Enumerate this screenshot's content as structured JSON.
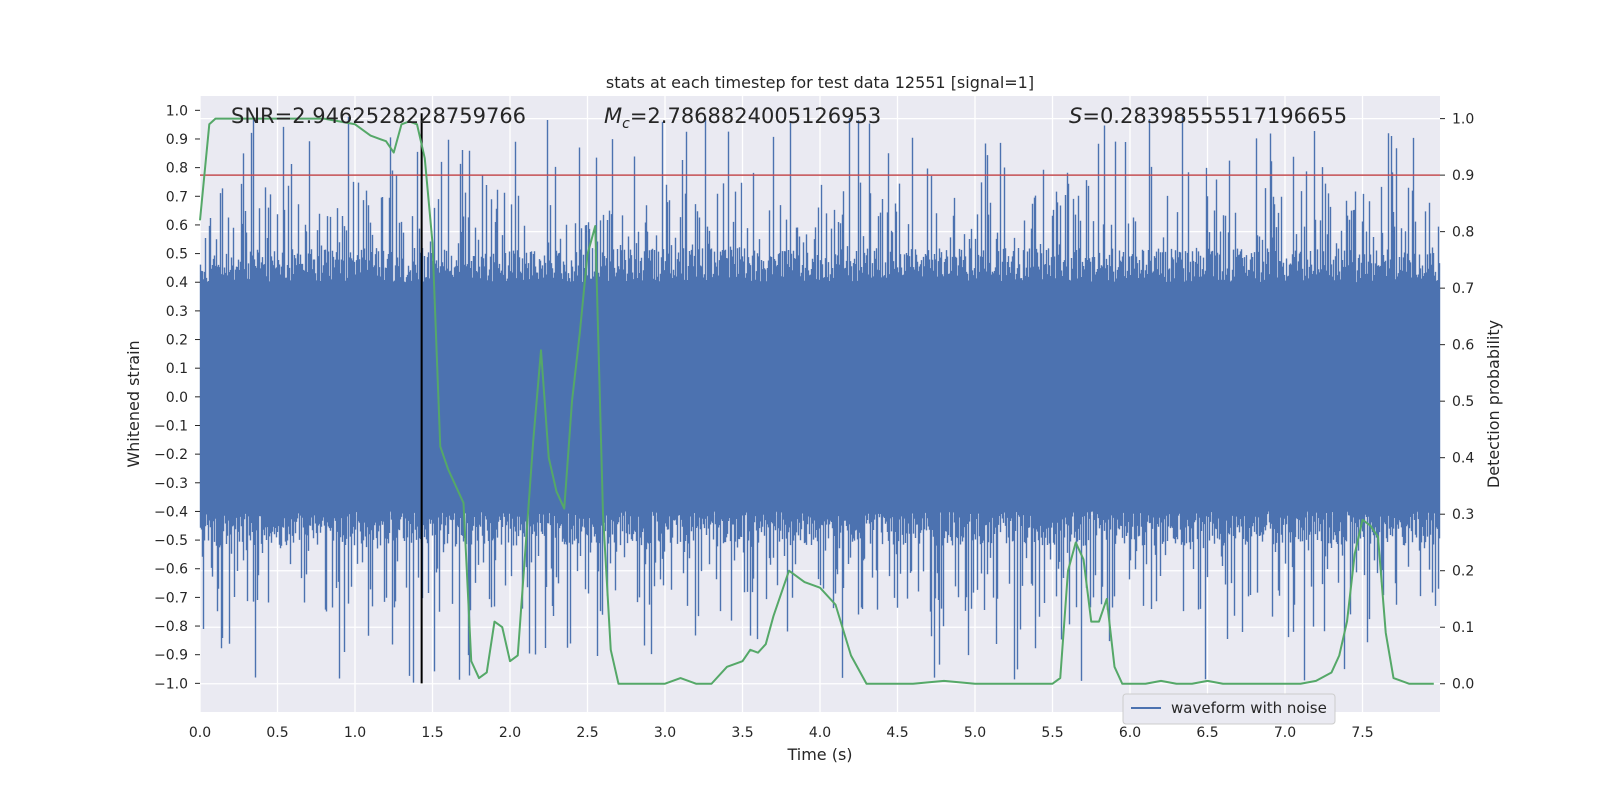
{
  "chart_data": {
    "type": "line",
    "title": "stats at each timestep for test data 12551 [signal=1]",
    "xlabel": "Time (s)",
    "ylabel_left": "Whitened strain",
    "ylabel_right": "Detection probability",
    "xlim": [
      0.0,
      8.0
    ],
    "ylim_left": [
      -1.1,
      1.05
    ],
    "ylim_right": [
      -0.05,
      1.04
    ],
    "x_ticks": [
      "0.0",
      "0.5",
      "1.0",
      "1.5",
      "2.0",
      "2.5",
      "3.0",
      "3.5",
      "4.0",
      "4.5",
      "5.0",
      "5.5",
      "6.0",
      "6.5",
      "7.0",
      "7.5"
    ],
    "y_left_ticks": [
      "1.0",
      "0.9",
      "0.8",
      "0.7",
      "0.6",
      "0.5",
      "0.4",
      "0.3",
      "0.2",
      "0.1",
      "0.0",
      "−0.1",
      "−0.2",
      "−0.3",
      "−0.4",
      "−0.5",
      "−0.6",
      "−0.7",
      "−0.8",
      "−0.9",
      "−1.0"
    ],
    "y_right_ticks": [
      "1.0",
      "0.9",
      "0.8",
      "0.7",
      "0.6",
      "0.5",
      "0.4",
      "0.3",
      "0.2",
      "0.1",
      "0.0"
    ],
    "grid": true,
    "legend_placement": "lower-right",
    "annotations": {
      "snr": "SNR=2.9462528228759766",
      "mc_symbol": "M",
      "mc_subscript": "c",
      "mc_value": "=2.7868824005126953",
      "s_symbol": "S",
      "s_value": "=0.28398555517196655"
    },
    "threshold_line": {
      "axis": "right",
      "y": 0.9
    },
    "event_marker": {
      "x": 1.43,
      "y_from": -1.0,
      "y_to": 0.99
    },
    "series": [
      {
        "name": "waveform with noise",
        "axis": "left",
        "kind": "noise-band",
        "core_amplitude": 0.4,
        "peak_max": 0.98,
        "trough_min": -1.0,
        "n_samples": 4096,
        "color": "#4c72b0"
      },
      {
        "axis": "right",
        "kind": "line",
        "color": "#55a868",
        "x": [
          0.0,
          0.06,
          0.1,
          0.2,
          0.4,
          0.6,
          0.8,
          1.0,
          1.05,
          1.1,
          1.15,
          1.2,
          1.25,
          1.3,
          1.35,
          1.4,
          1.45,
          1.5,
          1.55,
          1.6,
          1.65,
          1.7,
          1.75,
          1.8,
          1.85,
          1.9,
          1.95,
          2.0,
          2.05,
          2.1,
          2.15,
          2.2,
          2.25,
          2.3,
          2.35,
          2.4,
          2.45,
          2.5,
          2.55,
          2.6,
          2.65,
          2.7,
          2.75,
          2.8,
          2.85,
          2.9,
          3.0,
          3.1,
          3.2,
          3.3,
          3.4,
          3.5,
          3.55,
          3.6,
          3.65,
          3.7,
          3.8,
          3.9,
          4.0,
          4.1,
          4.2,
          4.3,
          4.4,
          4.5,
          4.6,
          4.8,
          5.0,
          5.2,
          5.4,
          5.5,
          5.55,
          5.6,
          5.65,
          5.7,
          5.75,
          5.8,
          5.85,
          5.9,
          5.95,
          6.0,
          6.1,
          6.2,
          6.3,
          6.4,
          6.5,
          6.6,
          6.8,
          7.0,
          7.1,
          7.2,
          7.3,
          7.35,
          7.4,
          7.45,
          7.5,
          7.55,
          7.6,
          7.65,
          7.7,
          7.8,
          7.9,
          7.96
        ],
        "y": [
          0.82,
          0.99,
          1.0,
          1.0,
          1.0,
          1.0,
          1.0,
          0.99,
          0.98,
          0.97,
          0.965,
          0.96,
          0.94,
          0.99,
          0.995,
          0.99,
          0.93,
          0.78,
          0.42,
          0.38,
          0.35,
          0.32,
          0.04,
          0.01,
          0.02,
          0.11,
          0.1,
          0.04,
          0.05,
          0.24,
          0.43,
          0.59,
          0.4,
          0.34,
          0.31,
          0.5,
          0.62,
          0.76,
          0.81,
          0.3,
          0.06,
          0.0,
          0.0,
          0.0,
          0.0,
          0.0,
          0.0,
          0.01,
          0.0,
          0.0,
          0.03,
          0.04,
          0.06,
          0.055,
          0.07,
          0.12,
          0.2,
          0.18,
          0.17,
          0.14,
          0.05,
          0.0,
          0.0,
          0.0,
          0.0,
          0.005,
          0.0,
          0.0,
          0.0,
          0.0,
          0.01,
          0.2,
          0.25,
          0.22,
          0.11,
          0.11,
          0.15,
          0.03,
          0.0,
          0.0,
          0.0,
          0.005,
          0.0,
          0.0,
          0.005,
          0.0,
          0.0,
          0.0,
          0.0,
          0.005,
          0.02,
          0.05,
          0.11,
          0.23,
          0.29,
          0.28,
          0.26,
          0.09,
          0.01,
          0.0,
          0.0,
          0.0
        ]
      }
    ]
  },
  "legend": {
    "entry_label": "waveform with noise",
    "entry_color": "#4c72b0"
  },
  "colors": {
    "plot_background": "#eaeaf2",
    "grid": "#ffffff",
    "waveform": "#4c72b0",
    "detection": "#55a868",
    "threshold": "#c44e52",
    "marker": "#000000"
  }
}
